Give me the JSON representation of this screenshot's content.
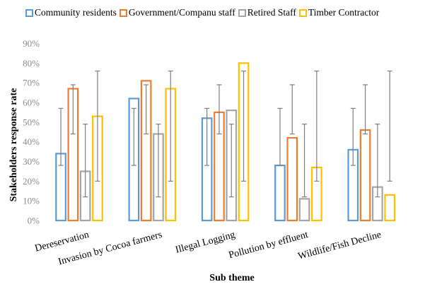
{
  "chart_data": {
    "type": "bar",
    "title": "",
    "xlabel": "Sub theme",
    "ylabel": "Stakeholders response rate",
    "ylim": [
      0,
      0.9
    ],
    "yticks": [
      "0%",
      "10%",
      "20%",
      "30%",
      "40%",
      "50%",
      "60%",
      "70%",
      "80%",
      "90%"
    ],
    "grid": false,
    "legend_position": "top",
    "categories": [
      "Dereservation",
      "Invasion by Cocoa farmers",
      "Illegal Logging",
      "Pollution by effluent",
      "Wildlife/Fish Decline"
    ],
    "series": [
      {
        "name": "Community residents",
        "color": "#5b9bd5",
        "values": [
          0.34,
          0.62,
          0.52,
          0.28,
          0.36
        ],
        "error_low": [
          0.28,
          0.28,
          0.28,
          0.28,
          0.28
        ],
        "error_high": [
          0.57,
          0.57,
          0.57,
          0.57,
          0.57
        ]
      },
      {
        "name": "Government/Companu staff",
        "color": "#ed7d31",
        "values": [
          0.67,
          0.71,
          0.55,
          0.42,
          0.46
        ],
        "error_low": [
          0.44,
          0.44,
          0.44,
          0.44,
          0.44
        ],
        "error_high": [
          0.69,
          0.69,
          0.69,
          0.69,
          0.69
        ]
      },
      {
        "name": "Retired Staff",
        "color": "#a5a5a5",
        "values": [
          0.25,
          0.44,
          0.56,
          0.11,
          0.17
        ],
        "error_low": [
          0.12,
          0.12,
          0.12,
          0.12,
          0.12
        ],
        "error_high": [
          0.49,
          0.49,
          0.49,
          0.49,
          0.49
        ]
      },
      {
        "name": "Timber Contractor",
        "color": "#ffc000",
        "values": [
          0.53,
          0.67,
          0.8,
          0.27,
          0.13
        ],
        "error_low": [
          0.2,
          0.2,
          0.2,
          0.2,
          0.2
        ],
        "error_high": [
          0.76,
          0.76,
          0.76,
          0.76,
          0.76
        ]
      }
    ],
    "error_bar_color": "#7f7f7f"
  }
}
